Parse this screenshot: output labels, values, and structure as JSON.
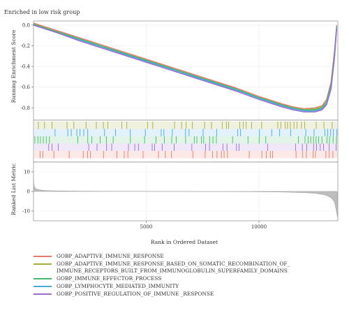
{
  "chart_data": {
    "type": "line",
    "title": "Enriched in low risk group",
    "xlabel": "Rank in Ordered Dataset",
    "xlim": [
      0,
      13500
    ],
    "x_ticks": [
      5000,
      10000
    ],
    "x_tick_labels": [
      "5000",
      "10000"
    ],
    "top_panel": {
      "ylabel": "Running Enrichment Score",
      "ylim": [
        -0.92,
        0.04
      ],
      "y_ticks": [
        0.0,
        -0.2,
        -0.4,
        -0.6,
        -0.8
      ],
      "y_tick_labels": [
        "0.0",
        "-0.2",
        "-0.4",
        "-0.6",
        "-0.8"
      ],
      "series": [
        {
          "name": "GOBP_ADAPTIVE_IMMUNE_RESPONSE",
          "color": "#e8796b",
          "x": [
            0,
            1000,
            2000,
            3000,
            4000,
            5000,
            6000,
            7000,
            8000,
            9000,
            10000,
            11000,
            11500,
            12000,
            12500,
            12800,
            13000,
            13200,
            13350,
            13450
          ],
          "y": [
            0.02,
            -0.05,
            -0.12,
            -0.19,
            -0.26,
            -0.33,
            -0.4,
            -0.47,
            -0.54,
            -0.61,
            -0.69,
            -0.76,
            -0.79,
            -0.81,
            -0.8,
            -0.78,
            -0.72,
            -0.55,
            -0.25,
            0.0
          ]
        },
        {
          "name": "GOBP_ADAPTIVE_IMMUNE_RESPONSE_BASED_ON_SOMATIC_RECOMBINATION_OF_\nIMMUNE_RECEPTORS_BUILT_FROM_IMMUNOGLOBULIN_SUPERFAMILY_DOMAINS",
          "color": "#a8ab3d",
          "x": [
            0,
            1000,
            2000,
            3000,
            4000,
            5000,
            6000,
            7000,
            8000,
            9000,
            10000,
            11000,
            11500,
            12000,
            12500,
            12800,
            13000,
            13200,
            13350,
            13450
          ],
          "y": [
            0.0,
            -0.07,
            -0.14,
            -0.21,
            -0.28,
            -0.35,
            -0.42,
            -0.49,
            -0.56,
            -0.63,
            -0.7,
            -0.77,
            -0.8,
            -0.82,
            -0.81,
            -0.79,
            -0.74,
            -0.58,
            -0.28,
            -0.02
          ]
        },
        {
          "name": "GOBP_IMMUNE_EFFECTOR_PROCESS",
          "color": "#45b86c",
          "x": [
            0,
            1000,
            2000,
            3000,
            4000,
            5000,
            6000,
            7000,
            8000,
            9000,
            10000,
            11000,
            11500,
            12000,
            12500,
            12800,
            13000,
            13200,
            13350,
            13450
          ],
          "y": [
            0.01,
            -0.06,
            -0.13,
            -0.2,
            -0.27,
            -0.34,
            -0.41,
            -0.48,
            -0.55,
            -0.62,
            -0.7,
            -0.77,
            -0.8,
            -0.82,
            -0.82,
            -0.8,
            -0.74,
            -0.58,
            -0.28,
            -0.01
          ]
        },
        {
          "name": "GOBP_LYMPHOCYTE_MEDIATED_IMMUNITY",
          "color": "#4aa7dd",
          "x": [
            0,
            1000,
            2000,
            3000,
            4000,
            5000,
            6000,
            7000,
            8000,
            9000,
            10000,
            11000,
            11500,
            12000,
            12500,
            12800,
            13000,
            13200,
            13350,
            13450
          ],
          "y": [
            0.0,
            -0.07,
            -0.14,
            -0.21,
            -0.28,
            -0.35,
            -0.42,
            -0.49,
            -0.56,
            -0.63,
            -0.71,
            -0.78,
            -0.81,
            -0.83,
            -0.83,
            -0.81,
            -0.76,
            -0.6,
            -0.3,
            -0.02
          ]
        },
        {
          "name": "GOBP_POSITIVE_REGULATION_OF_IMMUNE _RESPONSE",
          "color": "#9b6ccf",
          "x": [
            0,
            1000,
            2000,
            3000,
            4000,
            5000,
            6000,
            7000,
            8000,
            9000,
            10000,
            11000,
            11500,
            12000,
            12500,
            12800,
            13000,
            13200,
            13350,
            13450
          ],
          "y": [
            0.0,
            -0.07,
            -0.15,
            -0.22,
            -0.29,
            -0.36,
            -0.43,
            -0.5,
            -0.57,
            -0.64,
            -0.72,
            -0.79,
            -0.82,
            -0.84,
            -0.84,
            -0.82,
            -0.77,
            -0.62,
            -0.32,
            -0.03
          ]
        }
      ]
    },
    "hit_panel": {
      "rows": [
        "GOBP_ADAPTIVE_IMMUNE_RESPONSE",
        "GOBP_ADAPTIVE_IMMUNE_RESPONSE_BASED_ON_SOMATIC_RECOMBINATION_OF_IMMUNE_RECEPTORS_BUILT_FROM_IMMUNOGLOBULIN_SUPERFAMILY_DOMAINS",
        "GOBP_IMMUNE_EFFECTOR_PROCESS",
        "GOBP_LYMPHOCYTE_MEDIATED_IMMUNITY",
        "GOBP_POSITIVE_REGULATION_OF_IMMUNE _RESPONSE"
      ],
      "row_order_top_to_bottom": [
        1,
        3,
        2,
        4,
        0
      ]
    },
    "bottom_panel": {
      "ylabel": "Ranked List Metric",
      "ylim": [
        -15,
        15
      ],
      "y_ticks": [
        10,
        0,
        -10
      ],
      "y_tick_labels": [
        "10",
        "0",
        "-10"
      ],
      "x": [
        0,
        20,
        50,
        100,
        200,
        400,
        700,
        1000,
        3000,
        6000,
        9000,
        11000,
        12000,
        12500,
        12900,
        13100,
        13250,
        13350,
        13420,
        13480
      ],
      "y": [
        8,
        3.5,
        2.2,
        1.5,
        1.0,
        0.6,
        0.4,
        0.3,
        0.1,
        0.0,
        -0.1,
        -0.3,
        -0.6,
        -1.0,
        -1.7,
        -2.6,
        -3.8,
        -5.5,
        -9.0,
        -13.0
      ]
    },
    "grid": true
  }
}
